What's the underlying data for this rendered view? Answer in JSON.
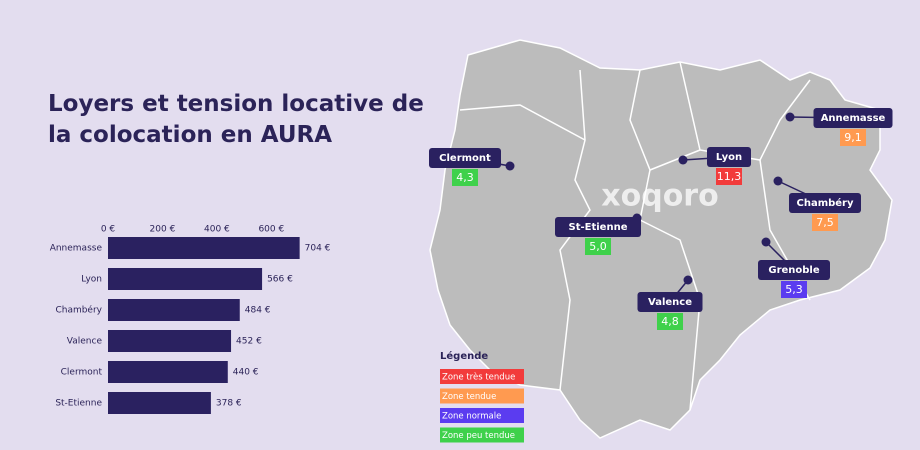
{
  "chart_data": {
    "type": "bar",
    "orientation": "horizontal",
    "title": "Loyers et tension locative de la colocation en AURA",
    "categories": [
      "Annemasse",
      "Lyon",
      "Chambéry",
      "Valence",
      "Clermont",
      "St-Etienne"
    ],
    "values": [
      704,
      566,
      484,
      452,
      440,
      378
    ],
    "value_labels": [
      "704 €",
      "566 €",
      "484 €",
      "452 €",
      "440 €",
      "378 €"
    ],
    "color": "#2a2160",
    "xlim": [
      0,
      720
    ],
    "xticks": [
      {
        "value": 0,
        "label": "0 €"
      },
      {
        "value": 200,
        "label": "200 €"
      },
      {
        "value": 400,
        "label": "400 €"
      },
      {
        "value": 600,
        "label": "600 €"
      }
    ]
  },
  "map": {
    "brand": "xoqoro",
    "legend": {
      "title": "Légende",
      "items": [
        {
          "label": "Zone très tendue",
          "color": "#f23b3b"
        },
        {
          "label": "Zone tendue",
          "color": "#ff9a50"
        },
        {
          "label": "Zone normale",
          "color": "#5b3cf0"
        },
        {
          "label": "Zone peu tendue",
          "color": "#3fd14b"
        }
      ]
    },
    "cities": [
      {
        "name": "Clermont",
        "value": 4.3,
        "label": "4,3",
        "color": "#3fd14b"
      },
      {
        "name": "Lyon",
        "value": 11.3,
        "label": "11,3",
        "color": "#f23b3b"
      },
      {
        "name": "Annemasse",
        "value": 9.1,
        "label": "9,1",
        "color": "#ff9a50"
      },
      {
        "name": "Chambéry",
        "value": 7.5,
        "label": "7,5",
        "color": "#ff9a50"
      },
      {
        "name": "St-Etienne",
        "value": 5.0,
        "label": "5,0",
        "color": "#3fd14b"
      },
      {
        "name": "Grenoble",
        "value": 5.3,
        "label": "5,3",
        "color": "#5b3cf0"
      },
      {
        "name": "Valence",
        "value": 4.8,
        "label": "4,8",
        "color": "#3fd14b"
      }
    ]
  }
}
